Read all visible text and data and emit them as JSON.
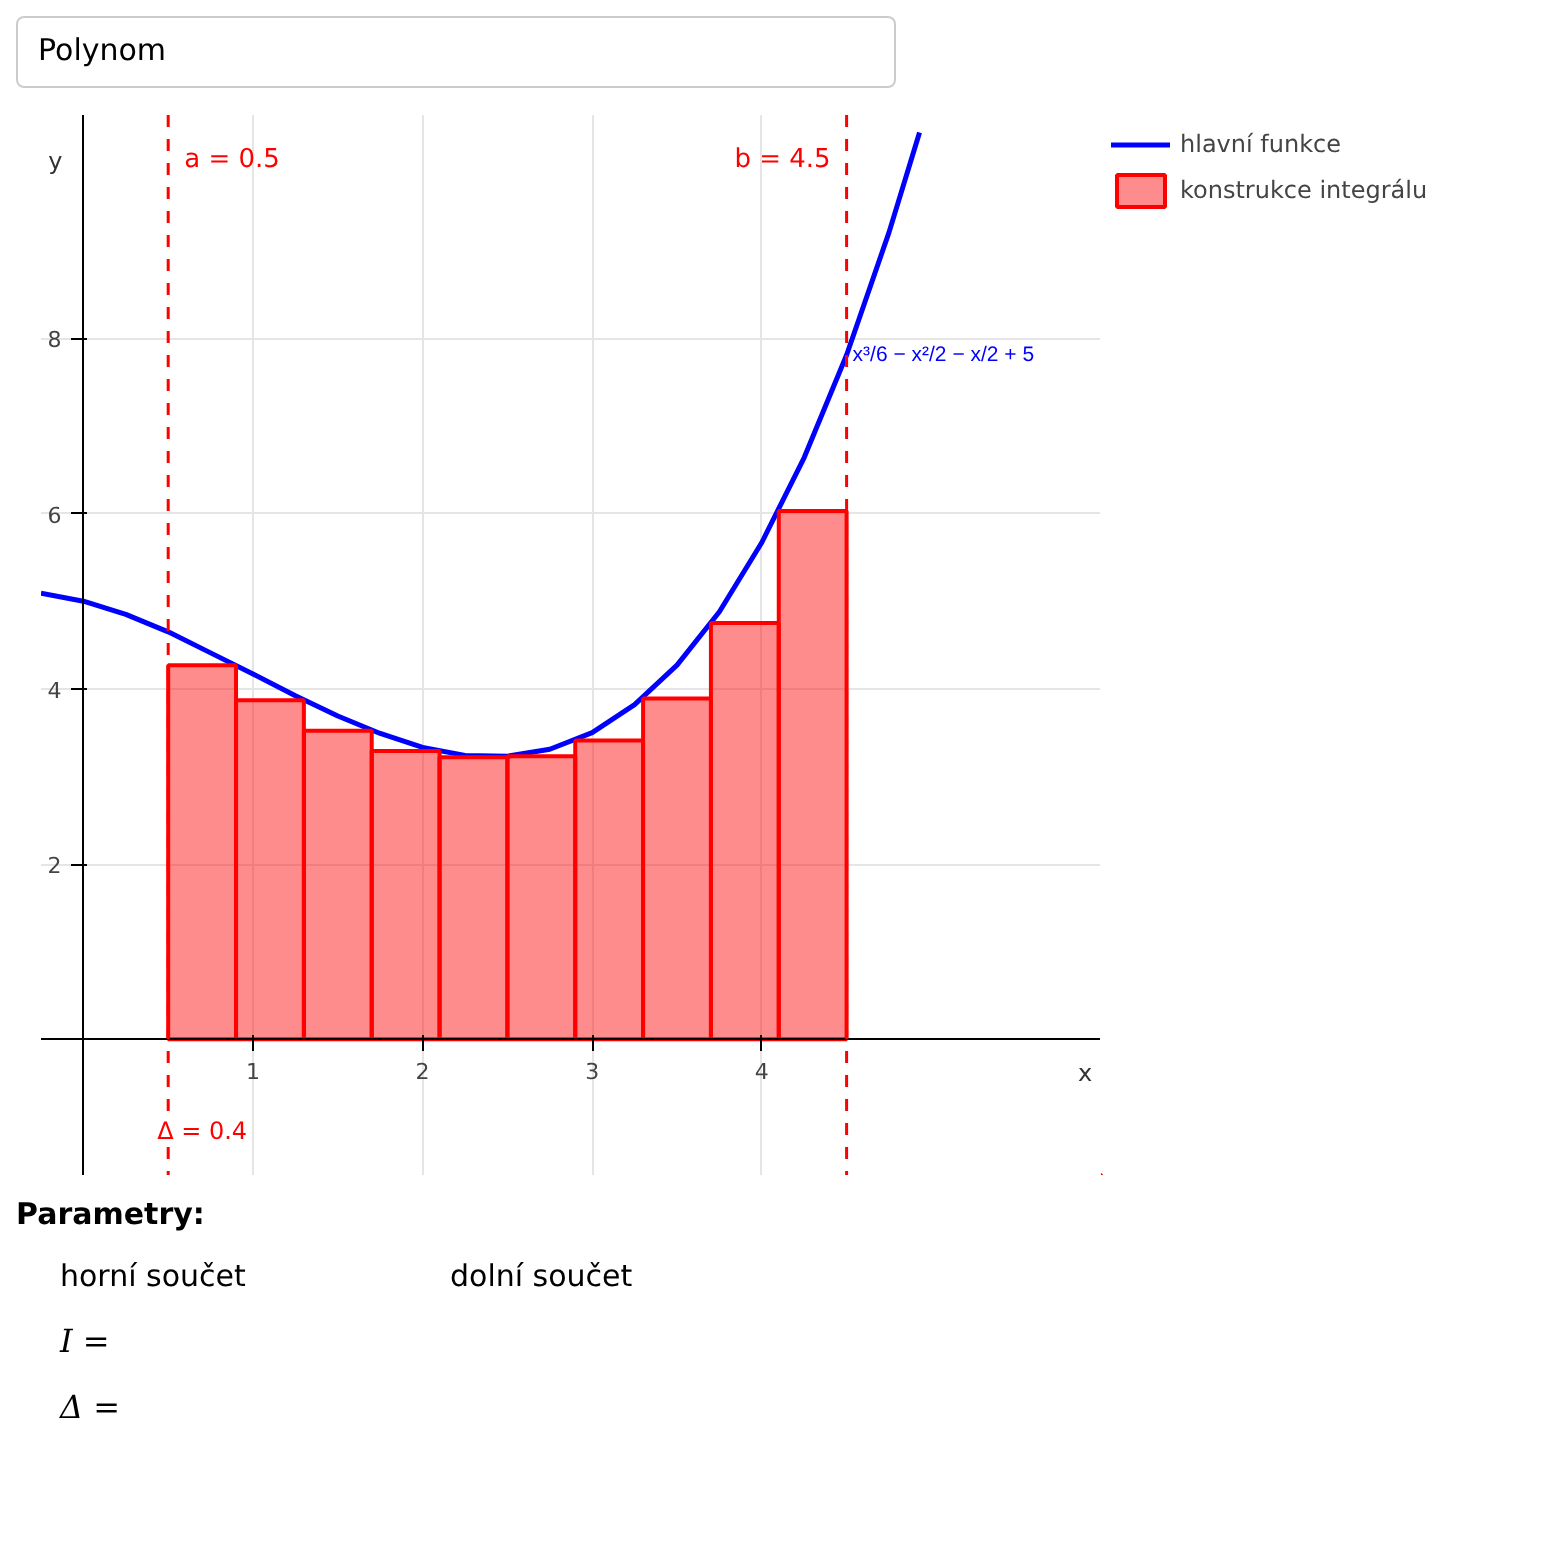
{
  "chart_data": {
    "type": "bar",
    "xlabel": "x",
    "ylabel": "y",
    "x": [
      0.7,
      1.1,
      1.5,
      1.9,
      2.3,
      2.7,
      3.1,
      3.5,
      3.9,
      4.3
    ],
    "series": [
      {
        "name": "hlavní funkce",
        "type": "line",
        "color": "#0000ff",
        "x": [
          -0.25,
          0,
          0.25,
          0.5,
          0.75,
          1,
          1.25,
          1.5,
          1.75,
          2,
          2.25,
          2.5,
          2.75,
          3,
          3.25,
          3.5,
          3.75,
          4,
          4.25,
          4.5,
          4.75,
          4.93
        ],
        "values": [
          5.09,
          5.0,
          4.85,
          4.65,
          4.41,
          4.17,
          3.92,
          3.69,
          3.49,
          3.33,
          3.24,
          3.23,
          3.31,
          3.5,
          3.82,
          4.27,
          4.88,
          5.67,
          6.64,
          7.81,
          9.21,
          10.35
        ]
      },
      {
        "name": "konstrukce integrálu",
        "color": "#ff0000",
        "values": [
          4.27,
          3.87,
          3.52,
          3.29,
          3.22,
          3.23,
          3.41,
          3.89,
          4.75,
          6.03
        ]
      }
    ],
    "xlim": [
      -0.25,
      6.0
    ],
    "ylim": [
      -1.55,
      10.55
    ],
    "xticks": [
      1,
      2,
      3,
      4
    ],
    "yticks": [
      2,
      4,
      6,
      8
    ],
    "grid": true,
    "legend": "top right",
    "ref_lines": [
      {
        "axis": "x",
        "value": 0.5,
        "label": "a = 0.5",
        "color": "#ff0000",
        "line_style": "dashed"
      },
      {
        "axis": "x",
        "value": 4.5,
        "label": "b = 4.5",
        "color": "#ff0000",
        "line_style": "dashed"
      }
    ],
    "annotations": [
      "Polynom",
      {
        "text": "x³/6 − x²/2 − x/2 + 5",
        "x": 4.5,
        "y": 7.81
      },
      "Δ = 0.4",
      "Parametry:",
      "horní součet",
      "dolní součet",
      "I =",
      "Δ ="
    ]
  }
}
